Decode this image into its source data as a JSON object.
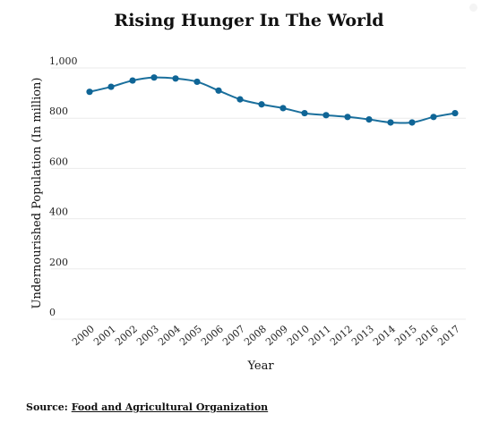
{
  "colors": {
    "line": "#1a6f9c",
    "marker": "#0f6596",
    "grid": "#ebebeb"
  },
  "chart_data": {
    "type": "line",
    "title": "Rising Hunger In The World",
    "xlabel": "Year",
    "ylabel": "Undernourished Population (In million)",
    "ylim": [
      0,
      1000
    ],
    "yticks": [
      0,
      200,
      400,
      600,
      800,
      1000
    ],
    "ytick_labels": [
      "0",
      "200",
      "400",
      "600",
      "800",
      "1,000"
    ],
    "grid": true,
    "legend": "none",
    "categories": [
      "2000",
      "2001",
      "2002",
      "2003",
      "2004",
      "2005",
      "2006",
      "2007",
      "2008",
      "2009",
      "2010",
      "2011",
      "2012",
      "2013",
      "2014",
      "2015",
      "2016",
      "2017"
    ],
    "series": [
      {
        "values": [
          905,
          925,
          950,
          962,
          958,
          945,
          910,
          875,
          855,
          840,
          820,
          812,
          805,
          795,
          783,
          783,
          805,
          820
        ]
      }
    ]
  },
  "source": {
    "label": "Source:",
    "link_text": "Food and Agricultural Organization"
  }
}
